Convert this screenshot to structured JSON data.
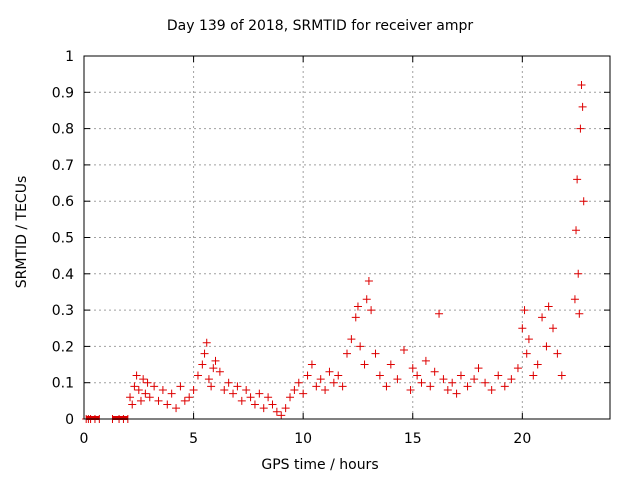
{
  "chart_data": {
    "type": "scatter",
    "title": "Day 139 of 2018, SRMTID for receiver ampr",
    "xlabel": "GPS time / hours",
    "ylabel": "SRMTID / TECUs",
    "xlim": [
      0,
      24
    ],
    "ylim": [
      0,
      1
    ],
    "xticks": [
      0,
      5,
      10,
      15,
      20
    ],
    "xtick_labels": [
      "0",
      "5",
      "10",
      "15",
      "20"
    ],
    "yticks": [
      0,
      0.1,
      0.2,
      0.3,
      0.4,
      0.5,
      0.6,
      0.7,
      0.8,
      0.9,
      1
    ],
    "ytick_labels": [
      "0",
      "0.1",
      "0.2",
      "0.3",
      "0.4",
      "0.5",
      "0.6",
      "0.7",
      "0.8",
      "0.9",
      "1"
    ],
    "grid": true,
    "marker": "+",
    "series": [
      {
        "name": "SRMTID",
        "color": "#dd0000",
        "x": [
          0.1,
          0.2,
          0.3,
          0.5,
          0.7,
          1.3,
          1.6,
          1.8,
          2.0,
          2.1,
          2.2,
          2.3,
          2.4,
          2.5,
          2.6,
          2.7,
          2.8,
          2.9,
          3.0,
          3.2,
          3.4,
          3.6,
          3.8,
          4.0,
          4.2,
          4.4,
          4.6,
          4.8,
          5.0,
          5.2,
          5.4,
          5.5,
          5.6,
          5.7,
          5.8,
          5.9,
          6.0,
          6.2,
          6.4,
          6.6,
          6.8,
          7.0,
          7.2,
          7.4,
          7.6,
          7.8,
          8.0,
          8.2,
          8.4,
          8.6,
          8.8,
          9.0,
          9.2,
          9.4,
          9.6,
          9.8,
          10.0,
          10.2,
          10.4,
          10.6,
          10.8,
          11.0,
          11.2,
          11.4,
          11.6,
          11.8,
          12.0,
          12.2,
          12.4,
          12.5,
          12.6,
          12.8,
          12.9,
          13.0,
          13.1,
          13.3,
          13.5,
          13.8,
          14.0,
          14.3,
          14.6,
          14.9,
          15.0,
          15.2,
          15.4,
          15.6,
          15.8,
          16.0,
          16.2,
          16.4,
          16.6,
          16.8,
          17.0,
          17.2,
          17.5,
          17.8,
          18.0,
          18.3,
          18.6,
          18.9,
          19.2,
          19.5,
          19.8,
          20.0,
          20.1,
          20.2,
          20.3,
          20.5,
          20.7,
          20.9,
          21.1,
          21.2,
          21.4,
          21.6,
          21.8,
          22.4,
          22.45,
          22.5,
          22.55,
          22.6,
          22.65,
          22.7,
          22.75,
          22.8
        ],
        "y": [
          0.0,
          0.0,
          0.0,
          0.0,
          0.0,
          0.0,
          0.0,
          0.0,
          0.0,
          0.06,
          0.04,
          0.09,
          0.12,
          0.08,
          0.05,
          0.11,
          0.07,
          0.1,
          0.06,
          0.09,
          0.05,
          0.08,
          0.04,
          0.07,
          0.03,
          0.09,
          0.05,
          0.06,
          0.08,
          0.12,
          0.15,
          0.18,
          0.21,
          0.11,
          0.09,
          0.14,
          0.16,
          0.13,
          0.08,
          0.1,
          0.07,
          0.09,
          0.05,
          0.08,
          0.06,
          0.04,
          0.07,
          0.03,
          0.06,
          0.04,
          0.02,
          0.01,
          0.03,
          0.06,
          0.08,
          0.1,
          0.07,
          0.12,
          0.15,
          0.09,
          0.11,
          0.08,
          0.13,
          0.1,
          0.12,
          0.09,
          0.18,
          0.22,
          0.28,
          0.31,
          0.2,
          0.15,
          0.33,
          0.38,
          0.3,
          0.18,
          0.12,
          0.09,
          0.15,
          0.11,
          0.19,
          0.08,
          0.14,
          0.12,
          0.1,
          0.16,
          0.09,
          0.13,
          0.29,
          0.11,
          0.08,
          0.1,
          0.07,
          0.12,
          0.09,
          0.11,
          0.14,
          0.1,
          0.08,
          0.12,
          0.09,
          0.11,
          0.14,
          0.25,
          0.3,
          0.18,
          0.22,
          0.12,
          0.15,
          0.28,
          0.2,
          0.31,
          0.25,
          0.18,
          0.12,
          0.33,
          0.52,
          0.66,
          0.4,
          0.29,
          0.8,
          0.92,
          0.86,
          0.6
        ],
        "zero_bars": [
          [
            0.1,
            0.7
          ],
          [
            1.3,
            2.0
          ]
        ]
      }
    ]
  }
}
